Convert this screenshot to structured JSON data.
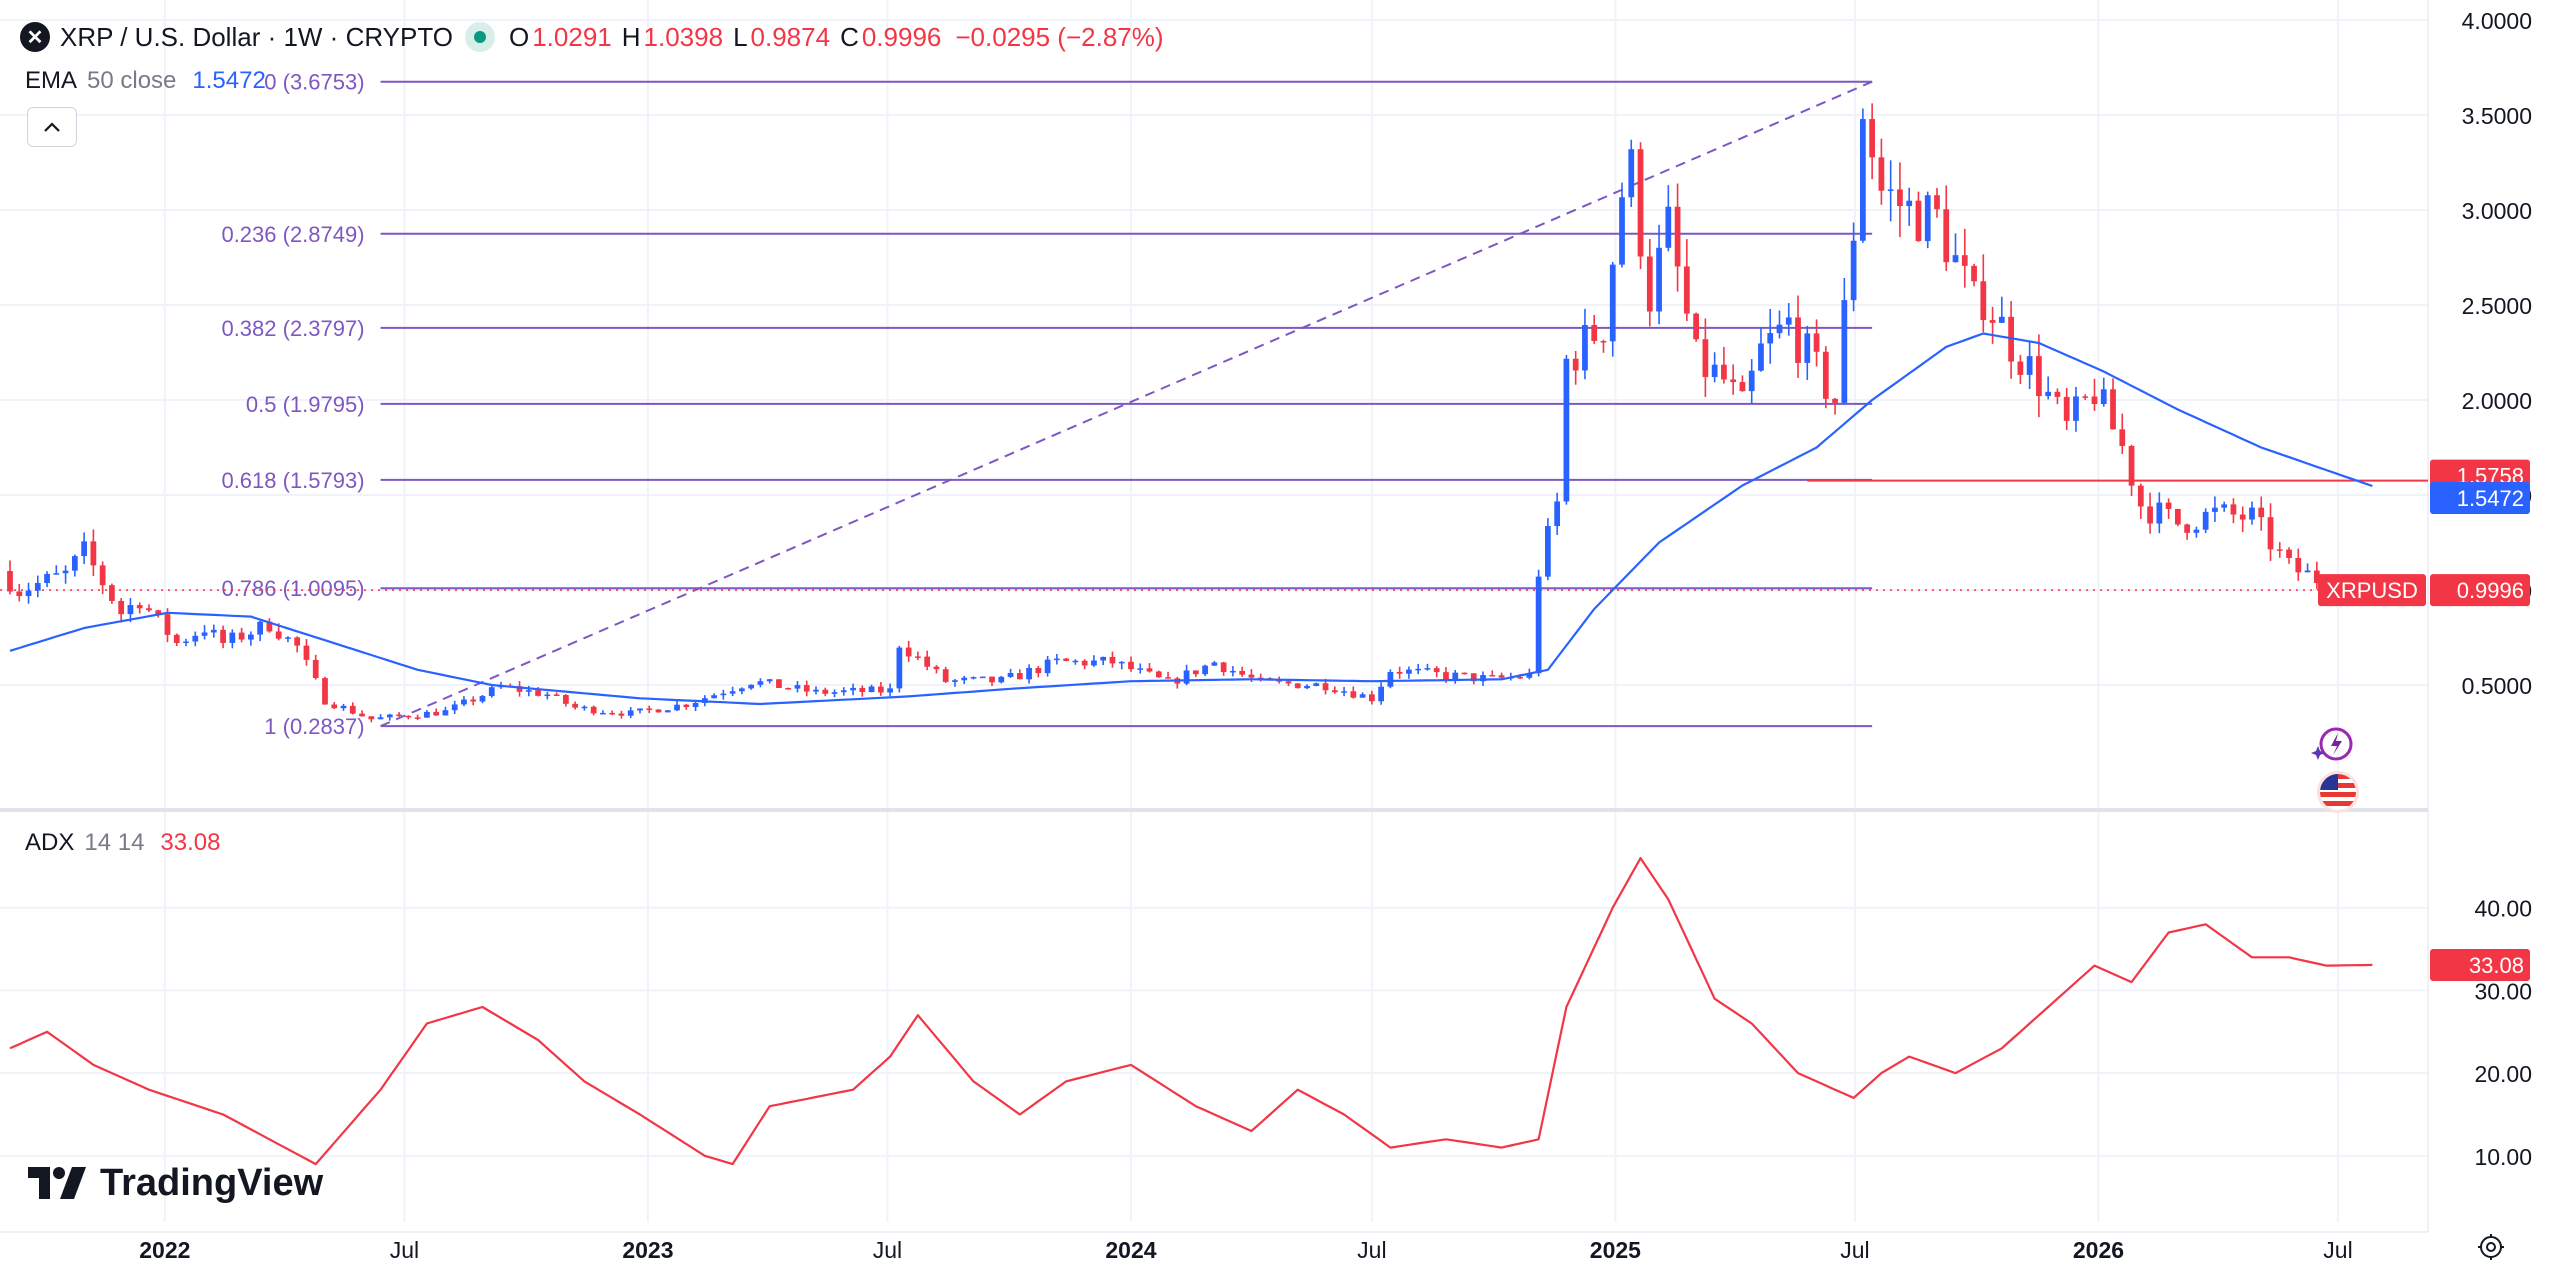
{
  "header": {
    "logo_glyph": "✕",
    "logo_icon": "xrp-logo-icon",
    "symbol_title": "XRP / U.S. Dollar · 1W · CRYPTO",
    "market_status_color": "#089981",
    "open_label": "O",
    "open_value": "1.0291",
    "high_label": "H",
    "high_value": "1.0398",
    "low_label": "L",
    "low_value": "0.9874",
    "close_label": "C",
    "close_value": "0.9996",
    "change_value": "−0.0295 (−2.87%)"
  },
  "ema_legend": {
    "name": "EMA",
    "params": "50 close",
    "value": "1.5472"
  },
  "adx_legend": {
    "name": "ADX",
    "params": "14 14",
    "value": "33.08"
  },
  "branding": {
    "name": "TradingView"
  },
  "colors": {
    "up": "#2962ff",
    "down": "#f23645",
    "ema": "#2962ff",
    "adx": "#f23645",
    "fib": "#7e57c2",
    "grid": "#f0f3fa",
    "axis_text": "#131722"
  },
  "chart_data": {
    "type": "candlestick",
    "title": "XRP / U.S. Dollar · 1W · CRYPTO",
    "x_tick_labels": [
      "2022",
      "Jul",
      "2023",
      "Jul",
      "2024",
      "Jul",
      "2025",
      "Jul",
      "2026",
      "Jul"
    ],
    "price_axis": {
      "ticks": [
        0.5,
        1.0,
        1.5,
        2.0,
        2.5,
        3.0,
        3.5,
        4.0
      ],
      "tick_labels": [
        "0.5000",
        "1.0000",
        "1.5000",
        "2.0000",
        "2.5000",
        "3.0000",
        "3.5000",
        "4.0000"
      ],
      "range": [
        0.0,
        4.0
      ]
    },
    "adx_axis": {
      "ticks": [
        10,
        20,
        30,
        40
      ],
      "tick_labels": [
        "10.00",
        "20.00",
        "30.00",
        "40.00"
      ],
      "range": [
        2,
        50
      ]
    },
    "x_range": [
      "2021-09-06",
      "2026-09-07"
    ],
    "price_badges": [
      {
        "value": 1.5758,
        "label": "1.5758",
        "color": "#f23645"
      },
      {
        "value": 1.5472,
        "label": "1.5472",
        "color": "#2962ff"
      },
      {
        "value": 0.9996,
        "label": "0.9996",
        "name": "XRPUSD",
        "color": "#f23645"
      }
    ],
    "adx_badge": {
      "value": 33.08,
      "label": "33.08"
    },
    "horizontal_line": {
      "value": 1.5758,
      "from": "2025-05-26",
      "to": "2026-09-07"
    },
    "fibonacci": {
      "from": "2022-06-13",
      "to": "2025-07-14",
      "trend": [
        {
          "date": "2022-06-13",
          "value": 0.2837
        },
        {
          "date": "2025-07-14",
          "value": 3.6753
        }
      ],
      "levels": [
        {
          "ratio": 0,
          "value": 3.6753,
          "label": "0 (3.6753)"
        },
        {
          "ratio": 0.236,
          "value": 2.8749,
          "label": "0.236 (2.8749)"
        },
        {
          "ratio": 0.382,
          "value": 2.3797,
          "label": "0.382 (2.3797)"
        },
        {
          "ratio": 0.5,
          "value": 1.9795,
          "label": "0.5 (1.9795)"
        },
        {
          "ratio": 0.618,
          "value": 1.5793,
          "label": "0.618 (1.5793)"
        },
        {
          "ratio": 0.786,
          "value": 1.0095,
          "label": "0.786 (1.0095)"
        },
        {
          "ratio": 1,
          "value": 0.2837,
          "label": "1 (0.2837)"
        }
      ]
    },
    "price_anchors": [
      [
        "2021-09-06",
        1.1
      ],
      [
        "2021-09-20",
        1.0
      ],
      [
        "2021-10-25",
        1.08
      ],
      [
        "2021-11-08",
        1.2
      ],
      [
        "2021-12-06",
        0.88
      ],
      [
        "2021-12-20",
        0.95
      ],
      [
        "2022-01-17",
        0.72
      ],
      [
        "2022-02-07",
        0.8
      ],
      [
        "2022-02-21",
        0.72
      ],
      [
        "2022-03-28",
        0.82
      ],
      [
        "2022-04-18",
        0.7
      ],
      [
        "2022-05-09",
        0.42
      ],
      [
        "2022-06-13",
        0.32
      ],
      [
        "2022-07-11",
        0.34
      ],
      [
        "2022-08-08",
        0.36
      ],
      [
        "2022-09-19",
        0.49
      ],
      [
        "2022-10-24",
        0.45
      ],
      [
        "2022-11-14",
        0.38
      ],
      [
        "2022-12-26",
        0.35
      ],
      [
        "2023-02-06",
        0.4
      ],
      [
        "2023-03-27",
        0.52
      ],
      [
        "2023-05-15",
        0.46
      ],
      [
        "2023-07-10",
        0.47
      ],
      [
        "2023-07-17",
        0.72
      ],
      [
        "2023-08-21",
        0.52
      ],
      [
        "2023-10-02",
        0.52
      ],
      [
        "2023-11-13",
        0.62
      ],
      [
        "2023-12-25",
        0.62
      ],
      [
        "2024-02-05",
        0.51
      ],
      [
        "2024-03-11",
        0.62
      ],
      [
        "2024-04-15",
        0.51
      ],
      [
        "2024-06-03",
        0.5
      ],
      [
        "2024-07-08",
        0.43
      ],
      [
        "2024-07-22",
        0.58
      ],
      [
        "2024-09-02",
        0.55
      ],
      [
        "2024-10-07",
        0.53
      ],
      [
        "2024-11-04",
        0.55
      ],
      [
        "2024-11-11",
        1.1
      ],
      [
        "2024-11-25",
        1.45
      ],
      [
        "2024-12-02",
        2.2
      ],
      [
        "2024-12-16",
        2.3
      ],
      [
        "2024-12-30",
        2.4
      ],
      [
        "2025-01-13",
        3.1
      ],
      [
        "2025-01-20",
        3.2
      ],
      [
        "2025-02-03",
        2.55
      ],
      [
        "2025-02-17",
        2.9
      ],
      [
        "2025-03-10",
        2.2
      ],
      [
        "2025-03-31",
        2.1
      ],
      [
        "2025-04-14",
        1.95
      ],
      [
        "2025-04-28",
        2.25
      ],
      [
        "2025-05-19",
        2.4
      ],
      [
        "2025-06-09",
        2.15
      ],
      [
        "2025-06-23",
        2.0
      ],
      [
        "2025-07-07",
        2.9
      ],
      [
        "2025-07-14",
        3.55
      ],
      [
        "2025-07-28",
        3.1
      ],
      [
        "2025-08-18",
        3.0
      ],
      [
        "2025-09-08",
        2.95
      ],
      [
        "2025-10-06",
        2.5
      ],
      [
        "2025-10-13",
        2.55
      ],
      [
        "2025-11-03",
        2.3
      ],
      [
        "2025-11-24",
        2.1
      ],
      [
        "2025-12-15",
        1.85
      ],
      [
        "2026-01-05",
        2.05
      ],
      [
        "2026-01-26",
        1.75
      ],
      [
        "2026-02-09",
        1.45
      ],
      [
        "2026-03-09",
        1.35
      ],
      [
        "2026-04-06",
        1.4
      ],
      [
        "2026-05-04",
        1.38
      ],
      [
        "2026-06-01",
        1.12
      ],
      [
        "2026-06-22",
        1.06
      ],
      [
        "2026-07-20",
        0.9996
      ]
    ],
    "ema_anchors": [
      [
        "2021-09-06",
        0.68
      ],
      [
        "2021-11-01",
        0.8
      ],
      [
        "2022-01-03",
        0.88
      ],
      [
        "2022-03-07",
        0.86
      ],
      [
        "2022-05-09",
        0.72
      ],
      [
        "2022-07-11",
        0.58
      ],
      [
        "2022-09-05",
        0.5
      ],
      [
        "2022-12-26",
        0.43
      ],
      [
        "2023-03-27",
        0.4
      ],
      [
        "2023-07-17",
        0.44
      ],
      [
        "2023-10-02",
        0.48
      ],
      [
        "2024-01-01",
        0.52
      ],
      [
        "2024-04-01",
        0.53
      ],
      [
        "2024-07-01",
        0.52
      ],
      [
        "2024-10-07",
        0.53
      ],
      [
        "2024-11-11",
        0.58
      ],
      [
        "2024-12-16",
        0.9
      ],
      [
        "2025-02-03",
        1.25
      ],
      [
        "2025-04-07",
        1.55
      ],
      [
        "2025-06-02",
        1.75
      ],
      [
        "2025-07-14",
        2.0
      ],
      [
        "2025-09-08",
        2.28
      ],
      [
        "2025-10-06",
        2.35
      ],
      [
        "2025-11-17",
        2.3
      ],
      [
        "2026-01-05",
        2.15
      ],
      [
        "2026-03-02",
        1.95
      ],
      [
        "2026-05-04",
        1.75
      ],
      [
        "2026-07-27",
        1.5472
      ]
    ],
    "adx_anchors": [
      [
        "2021-09-06",
        23
      ],
      [
        "2021-10-04",
        25
      ],
      [
        "2021-11-08",
        21
      ],
      [
        "2021-12-20",
        18
      ],
      [
        "2022-02-14",
        15
      ],
      [
        "2022-03-21",
        12
      ],
      [
        "2022-04-25",
        9
      ],
      [
        "2022-06-13",
        18
      ],
      [
        "2022-07-18",
        26
      ],
      [
        "2022-08-29",
        28
      ],
      [
        "2022-10-10",
        24
      ],
      [
        "2022-11-14",
        19
      ],
      [
        "2022-12-26",
        15
      ],
      [
        "2023-02-13",
        10
      ],
      [
        "2023-03-06",
        9
      ],
      [
        "2023-04-03",
        16
      ],
      [
        "2023-06-05",
        18
      ],
      [
        "2023-07-03",
        22
      ],
      [
        "2023-07-24",
        27
      ],
      [
        "2023-09-04",
        19
      ],
      [
        "2023-10-09",
        15
      ],
      [
        "2023-11-13",
        19
      ],
      [
        "2024-01-01",
        21
      ],
      [
        "2024-02-19",
        16
      ],
      [
        "2024-04-01",
        13
      ],
      [
        "2024-05-06",
        18
      ],
      [
        "2024-06-10",
        15
      ],
      [
        "2024-07-15",
        11
      ],
      [
        "2024-08-26",
        12
      ],
      [
        "2024-10-07",
        11
      ],
      [
        "2024-11-04",
        12
      ],
      [
        "2024-11-25",
        28
      ],
      [
        "2024-12-30",
        40
      ],
      [
        "2025-01-20",
        46
      ],
      [
        "2025-02-10",
        41
      ],
      [
        "2025-03-17",
        29
      ],
      [
        "2025-04-14",
        26
      ],
      [
        "2025-05-19",
        20
      ],
      [
        "2025-06-30",
        17
      ],
      [
        "2025-07-21",
        20
      ],
      [
        "2025-08-11",
        22
      ],
      [
        "2025-09-15",
        20
      ],
      [
        "2025-10-20",
        23
      ],
      [
        "2025-11-24",
        28
      ],
      [
        "2025-12-29",
        33
      ],
      [
        "2026-01-26",
        31
      ],
      [
        "2026-02-23",
        37
      ],
      [
        "2026-03-23",
        38
      ],
      [
        "2026-04-27",
        34
      ],
      [
        "2026-05-25",
        34
      ],
      [
        "2026-06-22",
        33
      ],
      [
        "2026-07-27",
        33.08
      ]
    ]
  }
}
